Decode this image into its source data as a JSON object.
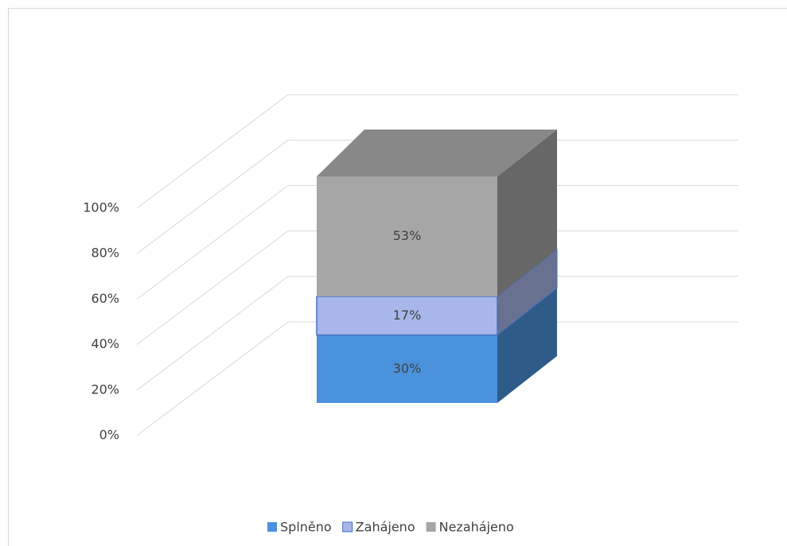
{
  "chart_data": {
    "type": "bar3d_stacked",
    "categories": [
      null
    ],
    "series": [
      {
        "name": "Splněno",
        "color": "#4a92dc",
        "values": [
          30
        ],
        "value_labels": [
          "30%"
        ]
      },
      {
        "name": "Zahájeno",
        "color": "#a9b6ea",
        "values": [
          17
        ],
        "value_labels": [
          "17%"
        ]
      },
      {
        "name": "Nezahájeno",
        "color": "#a6a6a6",
        "values": [
          53
        ],
        "value_labels": [
          "53%"
        ]
      }
    ],
    "ylim": [
      0,
      100
    ],
    "yticks": [
      {
        "value": 0,
        "label": "0%"
      },
      {
        "value": 20,
        "label": "20%"
      },
      {
        "value": 40,
        "label": "40%"
      },
      {
        "value": 60,
        "label": "60%"
      },
      {
        "value": 80,
        "label": "80%"
      },
      {
        "value": 100,
        "label": "100%"
      }
    ],
    "grid": true,
    "legend": "bottom"
  }
}
